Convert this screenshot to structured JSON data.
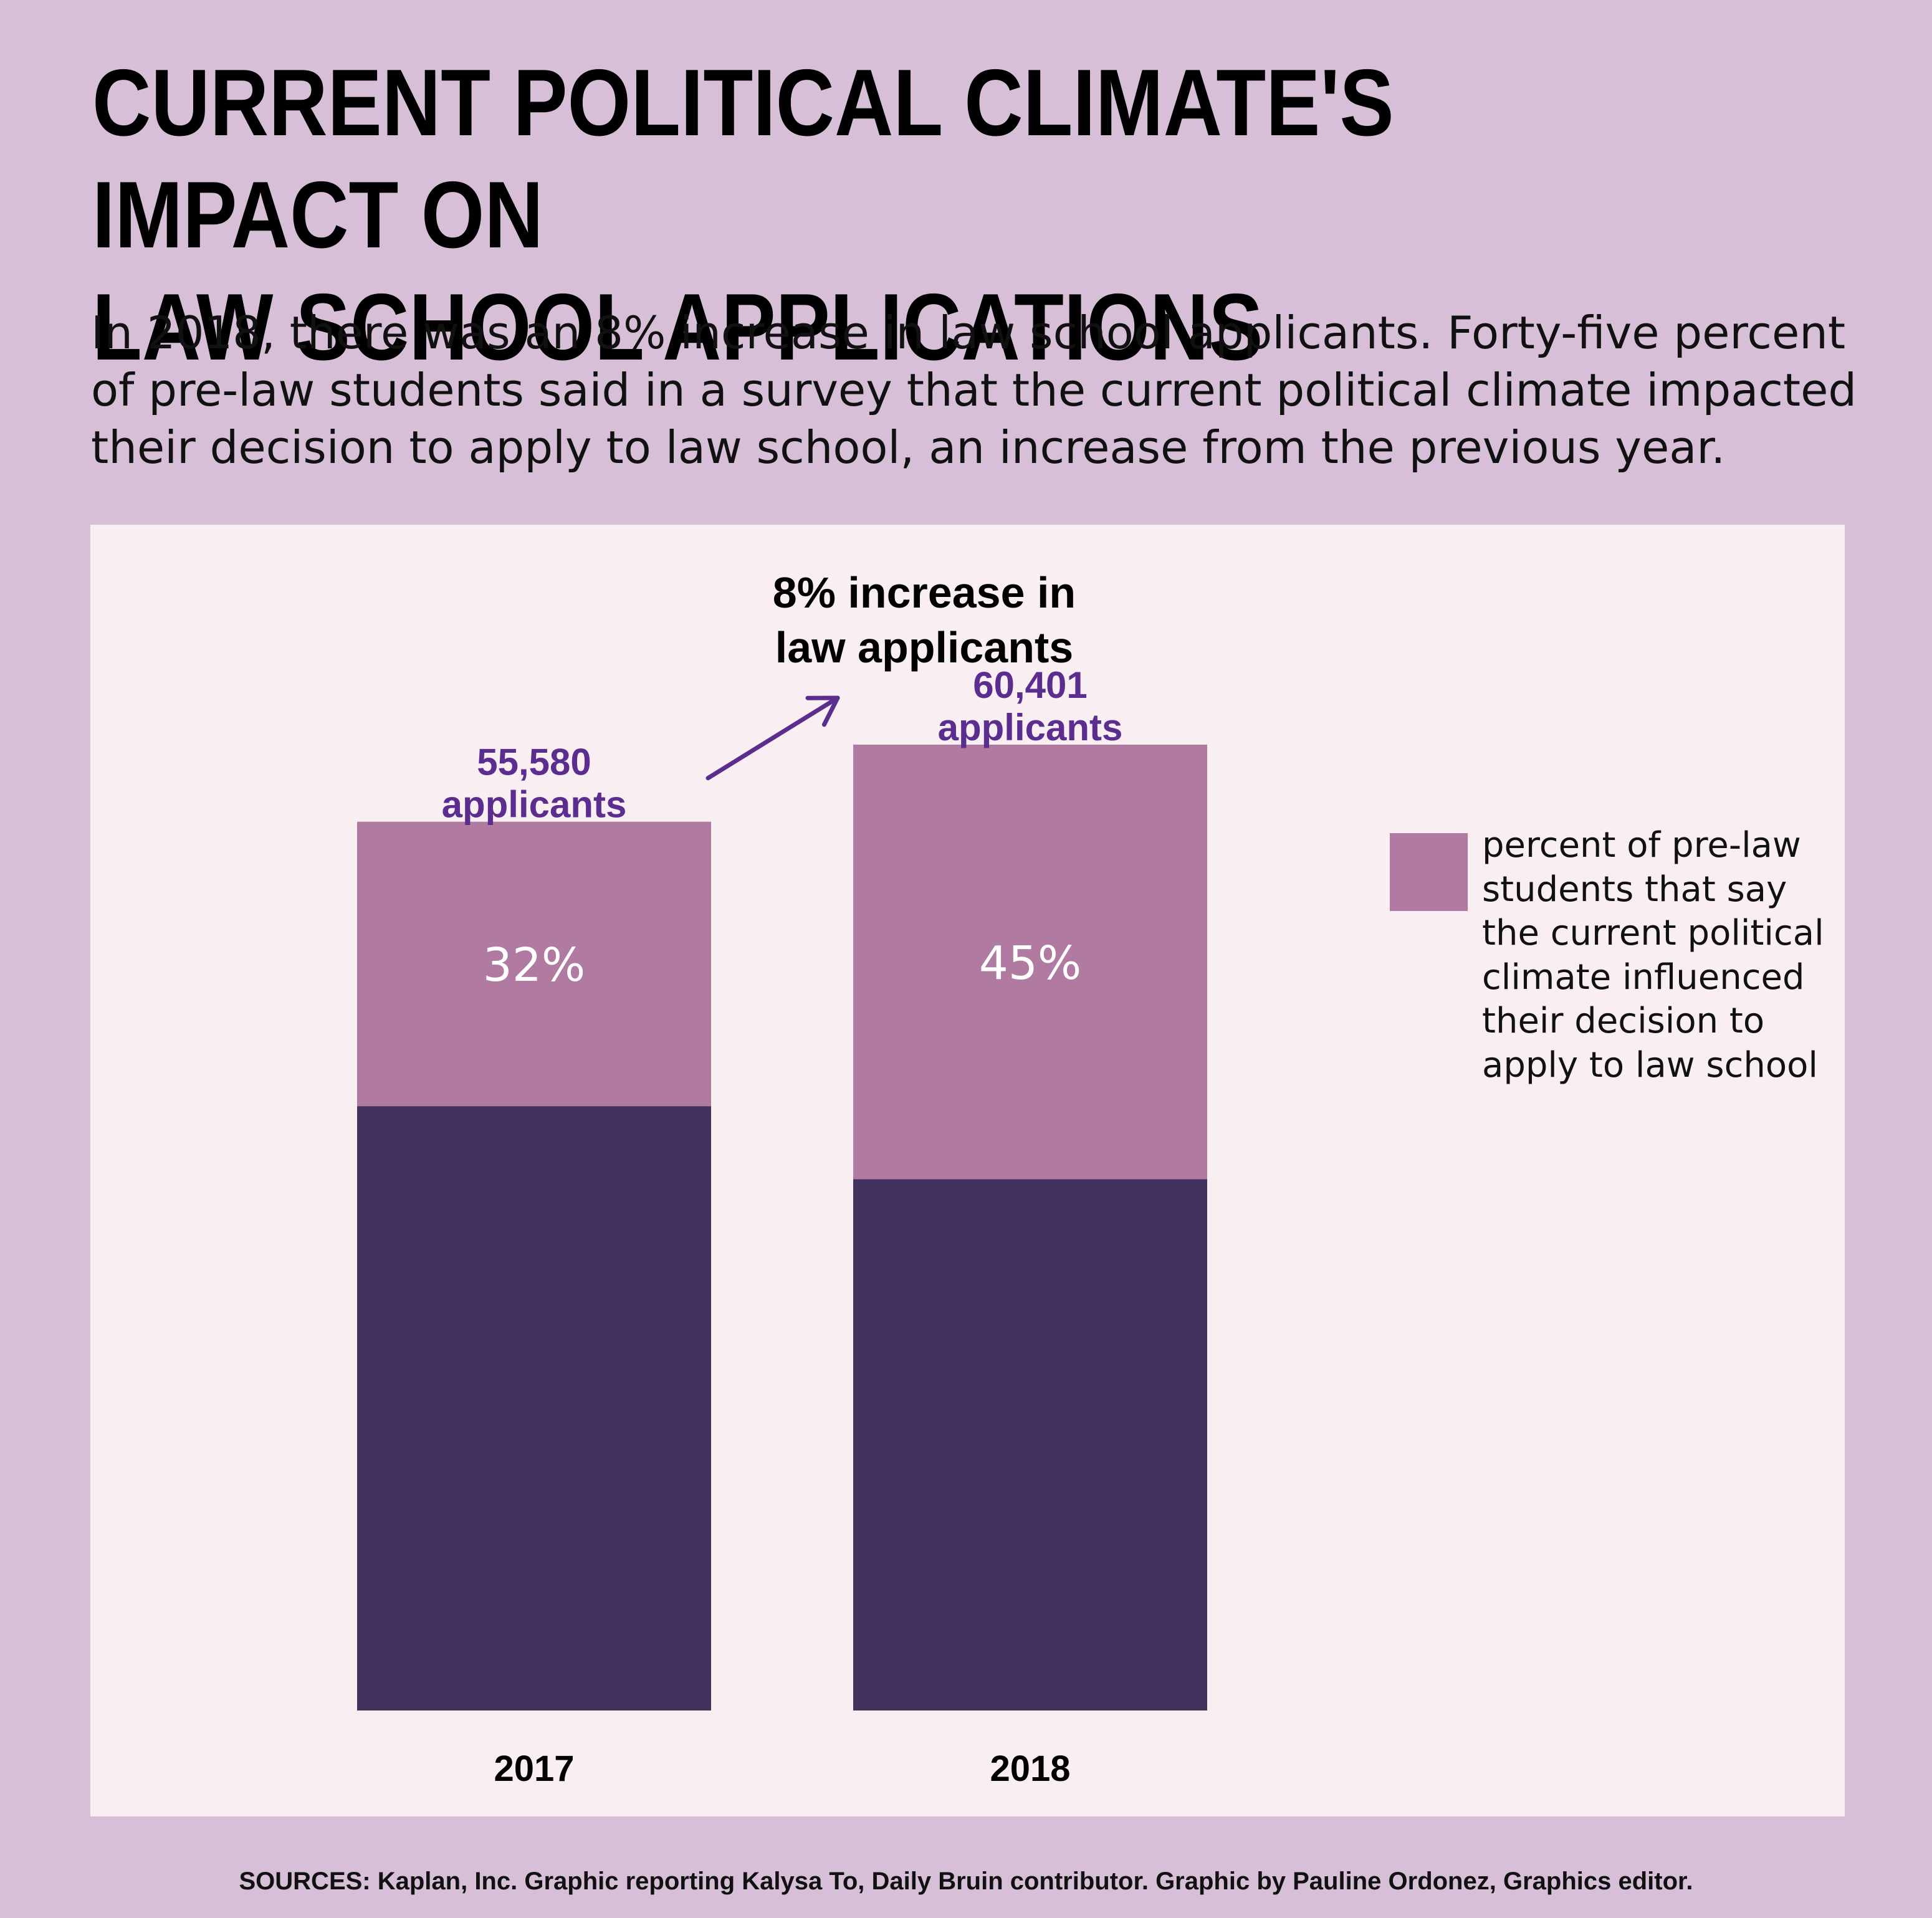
{
  "title": "CURRENT POLITICAL CLIMATE'S IMPACT ON\nLAW SCHOOL APPLICATIONS",
  "subtitle": "In 2018, there was an 8% increase in law school applicants. Forty-five percent of pre-law students said in a survey that the current political climate impacted their decision to apply to law school, an increase from the previous year.",
  "source": "SOURCES: Kaplan, Inc. Graphic reporting Kalysa To, Daily Bruin contributor. Graphic by Pauline Ordonez, Graphics editor.",
  "colors": {
    "background": "#d7bfd8",
    "panel": "#f9eff3",
    "base_segment": "#42325e",
    "influenced_segment": "#b07aa1",
    "accent_text": "#5b2d8e"
  },
  "chart_data": {
    "type": "bar",
    "stacked": true,
    "categories": [
      "2017",
      "2018"
    ],
    "totals": [
      55580,
      60401
    ],
    "total_labels": [
      "55,580\napplicants",
      "60,401\napplicants"
    ],
    "series": [
      {
        "name": "percent of pre-law students that say the current political climate influenced their decision to apply to law school",
        "percent_of_total": [
          32,
          45
        ],
        "labels": [
          "32%",
          "45%"
        ]
      }
    ],
    "annotation": {
      "text": "8% increase in\nlaw applicants",
      "from": "2017",
      "to": "2018"
    },
    "ylim": [
      0,
      60401
    ],
    "grid": false,
    "legend_position": "right"
  }
}
